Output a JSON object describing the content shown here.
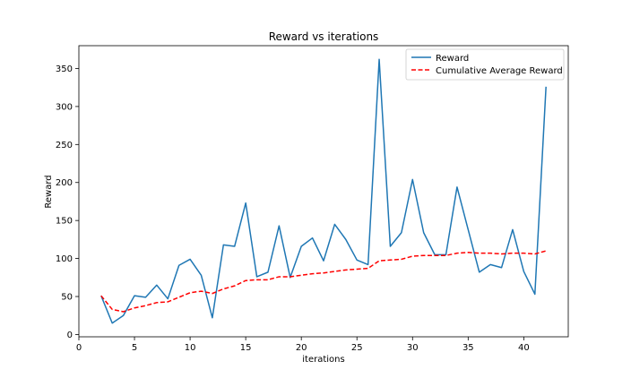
{
  "chart_data": {
    "type": "line",
    "title": "Reward vs iterations",
    "xlabel": "iterations",
    "ylabel": "Reward",
    "xlim": [
      0,
      44
    ],
    "ylim": [
      -3,
      380
    ],
    "xticks": [
      0,
      5,
      10,
      15,
      20,
      25,
      30,
      35,
      40
    ],
    "yticks": [
      0,
      50,
      100,
      150,
      200,
      250,
      300,
      350
    ],
    "grid": false,
    "legend": "top-right",
    "x": [
      2,
      3,
      4,
      5,
      6,
      7,
      8,
      9,
      10,
      11,
      12,
      13,
      14,
      15,
      16,
      17,
      18,
      19,
      20,
      21,
      22,
      23,
      24,
      25,
      26,
      27,
      28,
      29,
      30,
      31,
      32,
      33,
      34,
      35,
      36,
      37,
      38,
      39,
      40,
      41,
      42
    ],
    "series": [
      {
        "name": "Reward",
        "color": "#1f77b4",
        "style": "solid",
        "values": [
          51,
          15,
          25,
          51,
          49,
          65,
          47,
          91,
          99,
          78,
          22,
          118,
          116,
          173,
          76,
          82,
          143,
          75,
          116,
          127,
          97,
          145,
          125,
          98,
          92,
          362,
          116,
          134,
          204,
          134,
          105,
          105,
          194,
          138,
          82,
          92,
          88,
          138,
          83,
          53,
          326
        ]
      },
      {
        "name": "Cumulative Average Reward",
        "color": "#ff0000",
        "style": "dashed",
        "values": [
          51,
          33,
          30,
          35,
          38,
          42,
          43,
          49,
          55,
          57,
          54,
          60,
          64,
          71,
          72,
          72,
          76,
          76,
          78,
          80,
          81,
          83,
          85,
          86,
          87,
          97,
          98,
          99,
          103,
          104,
          104,
          104,
          107,
          108,
          107,
          107,
          106,
          107,
          107,
          106,
          110
        ]
      }
    ]
  }
}
